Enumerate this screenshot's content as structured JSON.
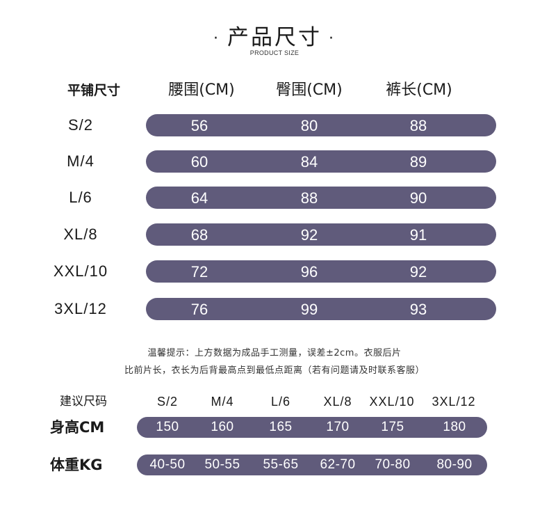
{
  "title": {
    "dot_left": "·",
    "text": "产品尺寸",
    "dot_right": "·",
    "subtitle": "PRODUCT SIZE"
  },
  "size_table": {
    "headers": [
      "平铺尺寸",
      "腰围(CM)",
      "臀围(CM)",
      "裤长(CM)"
    ],
    "rows": [
      {
        "size": "S/2",
        "values": [
          "56",
          "80",
          "88"
        ]
      },
      {
        "size": "M/4",
        "values": [
          "60",
          "84",
          "89"
        ]
      },
      {
        "size": "L/6",
        "values": [
          "64",
          "88",
          "90"
        ]
      },
      {
        "size": "XL/8",
        "values": [
          "68",
          "92",
          "91"
        ]
      },
      {
        "size": "XXL/10",
        "values": [
          "72",
          "96",
          "92"
        ]
      },
      {
        "size": "3XL/12",
        "values": [
          "76",
          "99",
          "93"
        ]
      }
    ]
  },
  "notes": {
    "line1": "温馨提示：上方数据为成品手工测量，误差±2cm。衣服后片",
    "line2": "比前片长，衣长为后背最高点到最低点距离（若有问题请及时联系客服）"
  },
  "recommend_table": {
    "headers": [
      "建议尺码",
      "S/2",
      "M/4",
      "L/6",
      "XL/8",
      "XXL/10",
      "3XL/12"
    ],
    "rows": [
      {
        "label": "身高CM",
        "values": [
          "150",
          "160",
          "165",
          "170",
          "175",
          "180"
        ]
      },
      {
        "label": "体重KG",
        "values": [
          "40-50",
          "50-55",
          "55-65",
          "62-70",
          "70-80",
          "80-90"
        ]
      }
    ]
  },
  "colors": {
    "bar": "#605b7b",
    "bar_text": "#ffffff",
    "text": "#1a1a1a"
  }
}
